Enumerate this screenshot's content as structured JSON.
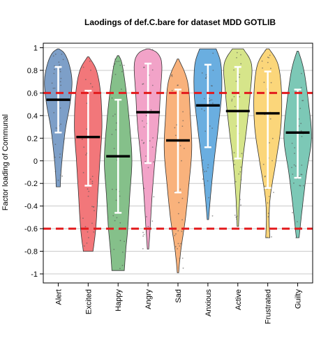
{
  "chart_data": {
    "type": "violin",
    "title": "Laodings of def.C.bare for dataset MDD GOTLIB",
    "xlabel": "",
    "ylabel": "Factor loading of Communal",
    "ylim": [
      -1.08,
      1.04
    ],
    "yticks": [
      -1,
      -0.8,
      -0.6,
      -0.4,
      -0.2,
      0,
      0.2,
      0.4,
      0.6,
      0.8,
      1
    ],
    "ytick_labels": [
      "-1",
      "-0.8",
      "-0.6",
      "-0.4",
      "-0.2",
      "0",
      "0.2",
      "0.4",
      "0.6",
      "0.8",
      "1"
    ],
    "grid": true,
    "reference_lines": [
      0.6,
      -0.6
    ],
    "reference_color": "#e31a1c",
    "series": [
      {
        "label": "Alert",
        "color": "#7d9fc8",
        "min": -0.23,
        "max": 0.99,
        "median": 0.54,
        "whisker": [
          0.25,
          0.83
        ],
        "density": [
          [
            -0.23,
            0.15
          ],
          [
            -0.1,
            0.2
          ],
          [
            0.1,
            0.35
          ],
          [
            0.3,
            0.55
          ],
          [
            0.5,
            0.85
          ],
          [
            0.7,
            1.0
          ],
          [
            0.85,
            0.8
          ],
          [
            0.95,
            0.45
          ],
          [
            0.99,
            0.05
          ]
        ]
      },
      {
        "label": "Excited",
        "color": "#f2777a",
        "min": -0.8,
        "max": 0.92,
        "median": 0.21,
        "whisker": [
          -0.22,
          0.62
        ],
        "density": [
          [
            -0.8,
            0.35
          ],
          [
            -0.6,
            0.55
          ],
          [
            -0.3,
            0.7
          ],
          [
            0,
            0.85
          ],
          [
            0.3,
            1.0
          ],
          [
            0.6,
            0.9
          ],
          [
            0.8,
            0.6
          ],
          [
            0.92,
            0.05
          ]
        ]
      },
      {
        "label": "Happy",
        "color": "#85c08a",
        "min": -0.97,
        "max": 0.93,
        "median": 0.04,
        "whisker": [
          -0.46,
          0.54
        ],
        "density": [
          [
            -0.97,
            0.45
          ],
          [
            -0.8,
            0.55
          ],
          [
            -0.6,
            0.7
          ],
          [
            -0.3,
            0.85
          ],
          [
            0,
            1.0
          ],
          [
            0.3,
            0.85
          ],
          [
            0.6,
            0.6
          ],
          [
            0.85,
            0.3
          ],
          [
            0.93,
            0.05
          ]
        ]
      },
      {
        "label": "Angry",
        "color": "#f2a3c8",
        "min": -0.78,
        "max": 0.99,
        "median": 0.43,
        "whisker": [
          -0.02,
          0.86
        ],
        "density": [
          [
            -0.78,
            0.05
          ],
          [
            -0.6,
            0.15
          ],
          [
            -0.3,
            0.3
          ],
          [
            0,
            0.5
          ],
          [
            0.3,
            0.75
          ],
          [
            0.6,
            0.9
          ],
          [
            0.85,
            1.0
          ],
          [
            0.95,
            0.7
          ],
          [
            0.99,
            0.1
          ]
        ]
      },
      {
        "label": "Sad",
        "color": "#f9b27c",
        "min": -0.99,
        "max": 0.9,
        "median": 0.18,
        "whisker": [
          -0.28,
          0.63
        ],
        "density": [
          [
            -0.99,
            0.05
          ],
          [
            -0.8,
            0.2
          ],
          [
            -0.5,
            0.55
          ],
          [
            -0.2,
            0.8
          ],
          [
            0.1,
            1.0
          ],
          [
            0.4,
            0.9
          ],
          [
            0.7,
            0.7
          ],
          [
            0.9,
            0.05
          ]
        ]
      },
      {
        "label": "Anxious",
        "color": "#6aaee0",
        "min": -0.52,
        "max": 0.99,
        "median": 0.49,
        "whisker": [
          0.12,
          0.85
        ],
        "density": [
          [
            -0.52,
            0.05
          ],
          [
            -0.3,
            0.2
          ],
          [
            0,
            0.45
          ],
          [
            0.3,
            0.75
          ],
          [
            0.6,
            1.0
          ],
          [
            0.85,
            0.95
          ],
          [
            0.99,
            0.6
          ]
        ]
      },
      {
        "label": "Active",
        "color": "#d6e58a",
        "min": -0.58,
        "max": 0.99,
        "median": 0.44,
        "whisker": [
          0.02,
          0.83
        ],
        "density": [
          [
            -0.58,
            0.05
          ],
          [
            -0.3,
            0.15
          ],
          [
            0,
            0.35
          ],
          [
            0.3,
            0.65
          ],
          [
            0.6,
            0.9
          ],
          [
            0.85,
            1.0
          ],
          [
            0.99,
            0.4
          ]
        ]
      },
      {
        "label": "Frustrated",
        "color": "#fbd67a",
        "min": -0.68,
        "max": 0.99,
        "median": 0.42,
        "whisker": [
          -0.24,
          0.79
        ],
        "density": [
          [
            -0.68,
            0.15
          ],
          [
            -0.5,
            0.1
          ],
          [
            -0.3,
            0.2
          ],
          [
            0,
            0.6
          ],
          [
            0.3,
            0.95
          ],
          [
            0.6,
            1.0
          ],
          [
            0.85,
            0.75
          ],
          [
            0.99,
            0.1
          ]
        ]
      },
      {
        "label": "Guilty",
        "color": "#7cc8b6",
        "min": -0.68,
        "max": 0.97,
        "median": 0.25,
        "whisker": [
          -0.15,
          0.63
        ],
        "density": [
          [
            -0.68,
            0.1
          ],
          [
            -0.4,
            0.35
          ],
          [
            -0.1,
            0.65
          ],
          [
            0.2,
            1.0
          ],
          [
            0.5,
            0.8
          ],
          [
            0.8,
            0.45
          ],
          [
            0.97,
            0.05
          ]
        ]
      }
    ]
  }
}
